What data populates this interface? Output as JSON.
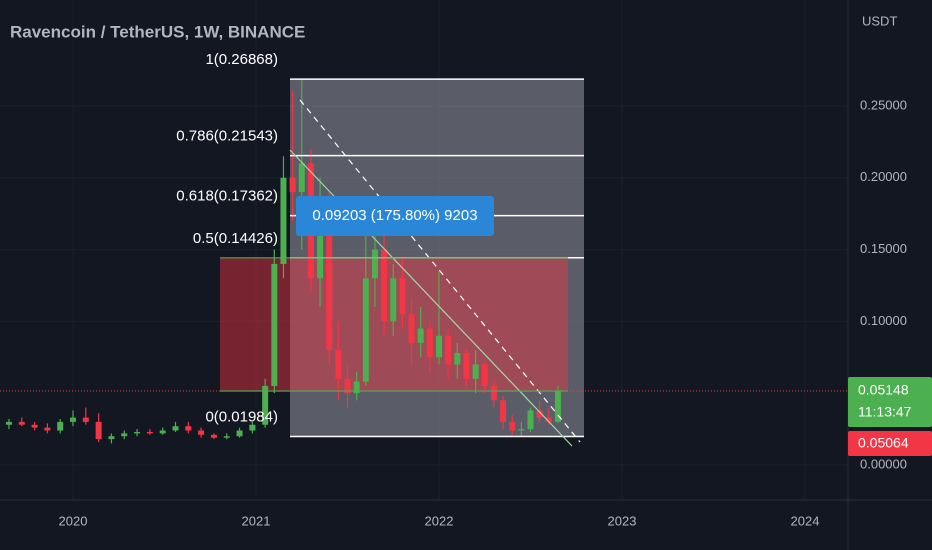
{
  "chart_data": {
    "type": "candlestick",
    "title": "Ravencoin / TetherUS, 1W, BINANCE",
    "unit": "USDT",
    "x": [
      2019.65,
      2019.72,
      2019.79,
      2019.86,
      2019.93,
      2020.0,
      2020.07,
      2020.14,
      2020.21,
      2020.28,
      2020.35,
      2020.42,
      2020.49,
      2020.56,
      2020.63,
      2020.7,
      2020.77,
      2020.84,
      2020.91,
      2020.98,
      2021.05,
      2021.1,
      2021.15,
      2021.2,
      2021.25,
      2021.3,
      2021.35,
      2021.4,
      2021.45,
      2021.5,
      2021.55,
      2021.6,
      2021.65,
      2021.7,
      2021.75,
      2021.8,
      2021.85,
      2021.9,
      2021.95,
      2022.0,
      2022.05,
      2022.1,
      2022.15,
      2022.2,
      2022.25,
      2022.3,
      2022.35,
      2022.4,
      2022.45,
      2022.5,
      2022.55,
      2022.6,
      2022.65
    ],
    "open": [
      0.028,
      0.03,
      0.028,
      0.026,
      0.024,
      0.03,
      0.033,
      0.03,
      0.018,
      0.02,
      0.022,
      0.023,
      0.022,
      0.024,
      0.027,
      0.024,
      0.021,
      0.019,
      0.02,
      0.024,
      0.028,
      0.055,
      0.14,
      0.2,
      0.19,
      0.21,
      0.13,
      0.18,
      0.08,
      0.06,
      0.05,
      0.058,
      0.13,
      0.15,
      0.1,
      0.13,
      0.105,
      0.085,
      0.095,
      0.075,
      0.09,
      0.07,
      0.078,
      0.06,
      0.07,
      0.055,
      0.045,
      0.03,
      0.024,
      0.025,
      0.038,
      0.033,
      0.03
    ],
    "high": [
      0.032,
      0.033,
      0.03,
      0.029,
      0.032,
      0.038,
      0.04,
      0.036,
      0.022,
      0.024,
      0.025,
      0.025,
      0.026,
      0.03,
      0.03,
      0.026,
      0.022,
      0.022,
      0.026,
      0.03,
      0.06,
      0.15,
      0.215,
      0.26,
      0.268,
      0.22,
      0.2,
      0.19,
      0.1,
      0.07,
      0.065,
      0.17,
      0.165,
      0.16,
      0.14,
      0.145,
      0.115,
      0.11,
      0.1,
      0.135,
      0.095,
      0.085,
      0.08,
      0.08,
      0.072,
      0.058,
      0.048,
      0.035,
      0.03,
      0.04,
      0.045,
      0.04,
      0.055
    ],
    "low": [
      0.025,
      0.027,
      0.024,
      0.022,
      0.022,
      0.027,
      0.028,
      0.016,
      0.015,
      0.018,
      0.02,
      0.021,
      0.021,
      0.023,
      0.022,
      0.019,
      0.018,
      0.018,
      0.019,
      0.022,
      0.026,
      0.05,
      0.13,
      0.17,
      0.15,
      0.12,
      0.11,
      0.07,
      0.045,
      0.04,
      0.045,
      0.055,
      0.11,
      0.09,
      0.09,
      0.095,
      0.07,
      0.075,
      0.065,
      0.07,
      0.06,
      0.06,
      0.055,
      0.05,
      0.05,
      0.04,
      0.025,
      0.02,
      0.02,
      0.023,
      0.03,
      0.028,
      0.029
    ],
    "close": [
      0.03,
      0.028,
      0.026,
      0.024,
      0.03,
      0.033,
      0.03,
      0.018,
      0.02,
      0.022,
      0.023,
      0.022,
      0.024,
      0.027,
      0.024,
      0.021,
      0.019,
      0.02,
      0.024,
      0.028,
      0.055,
      0.14,
      0.2,
      0.19,
      0.21,
      0.13,
      0.18,
      0.08,
      0.06,
      0.05,
      0.058,
      0.13,
      0.15,
      0.1,
      0.13,
      0.105,
      0.085,
      0.095,
      0.075,
      0.09,
      0.07,
      0.078,
      0.06,
      0.07,
      0.055,
      0.045,
      0.03,
      0.024,
      0.025,
      0.038,
      0.033,
      0.03,
      0.05148
    ],
    "up_color": "#4caf50",
    "down_color": "#f23645",
    "xlim": [
      2019.601,
      2024.235
    ],
    "ylim": [
      -0.0244,
      0.3238
    ],
    "xticks": [
      2020,
      2021,
      2022,
      2023,
      2024
    ],
    "yticks": [
      {
        "value": 0,
        "label": "0.00000"
      },
      {
        "value": 0.1,
        "label": "0.10000"
      },
      {
        "value": 0.15,
        "label": "0.15000"
      },
      {
        "value": 0.2,
        "label": "0.20000"
      },
      {
        "value": 0.25,
        "label": "0.25000"
      }
    ],
    "fib_levels": [
      {
        "value": 0.26868,
        "label": "1(0.26868)"
      },
      {
        "value": 0.21543,
        "label": "0.786(0.21543)"
      },
      {
        "value": 0.17362,
        "label": "0.618(0.17362)"
      },
      {
        "value": 0.14426,
        "label": "0.5(0.14426)"
      },
      {
        "value": 0.01984,
        "label": "0(0.01984)"
      }
    ],
    "measure_label": "0.09203 (175.80%) 9203",
    "last_price": 0.05148,
    "countdown": "11:13:47",
    "bid_price": 0.05064,
    "grid": true
  }
}
